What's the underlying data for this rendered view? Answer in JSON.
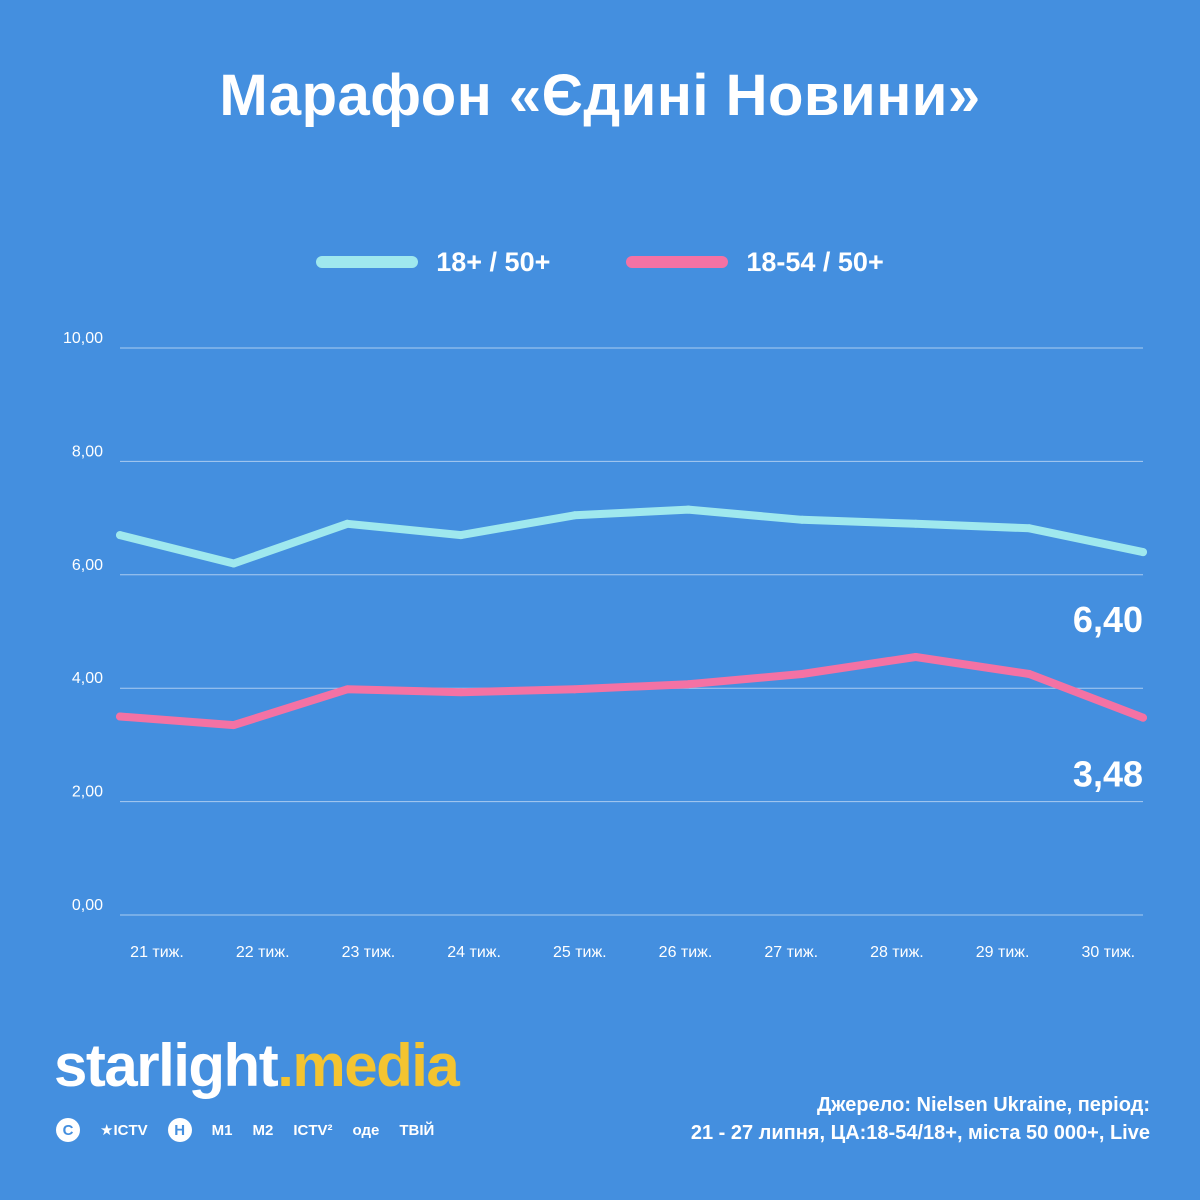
{
  "title": "Марафон «Єдині Новини»",
  "colors": {
    "background": "#448fdf",
    "series_a": "#9fe8ee",
    "series_b": "#f472a4",
    "accent": "#f4c430"
  },
  "chart_data": {
    "type": "line",
    "title": "Марафон «Єдині Новини»",
    "categories": [
      "21 тиж.",
      "22 тиж.",
      "23 тиж.",
      "24 тиж.",
      "25 тиж.",
      "26 тиж.",
      "27 тиж.",
      "28 тиж.",
      "29 тиж.",
      "30 тиж."
    ],
    "series": [
      {
        "name": "18+ / 50+",
        "values": [
          6.7,
          6.2,
          6.9,
          6.7,
          7.05,
          7.15,
          6.97,
          6.9,
          6.82,
          6.4
        ],
        "end_label": "6,40"
      },
      {
        "name": "18-54 / 50+",
        "values": [
          3.5,
          3.35,
          3.98,
          3.93,
          3.98,
          4.07,
          4.25,
          4.55,
          4.25,
          3.48
        ],
        "end_label": "3,48"
      }
    ],
    "yticks": [
      "0,00",
      "2,00",
      "4,00",
      "6,00",
      "8,00",
      "10,00"
    ],
    "ylim": [
      0,
      10
    ],
    "xlabel": "",
    "ylabel": "",
    "grid": true,
    "legend": "top-center"
  },
  "logo": {
    "part1": "starlight",
    "dot": ".",
    "part2": "media"
  },
  "channels": [
    {
      "icon": "stb-logo-icon",
      "text": "С"
    },
    {
      "icon": "ictv-logo-icon",
      "text": "★ICTV"
    },
    {
      "icon": "novyi-logo-icon",
      "text": "Н"
    },
    {
      "icon": "m1-logo-icon",
      "text": "M1"
    },
    {
      "icon": "m2-logo-icon",
      "text": "M2"
    },
    {
      "icon": "ictv2-logo-icon",
      "text": "ICTV²"
    },
    {
      "icon": "ode-logo-icon",
      "text": "оде"
    },
    {
      "icon": "tviy-logo-icon",
      "text": "ТВІЙ"
    }
  ],
  "source": {
    "line1": "Джерело: Nielsen Ukraine, період:",
    "line2": "21 - 27 липня, ЦА:18-54/18+, міста 50 000+, Live"
  }
}
